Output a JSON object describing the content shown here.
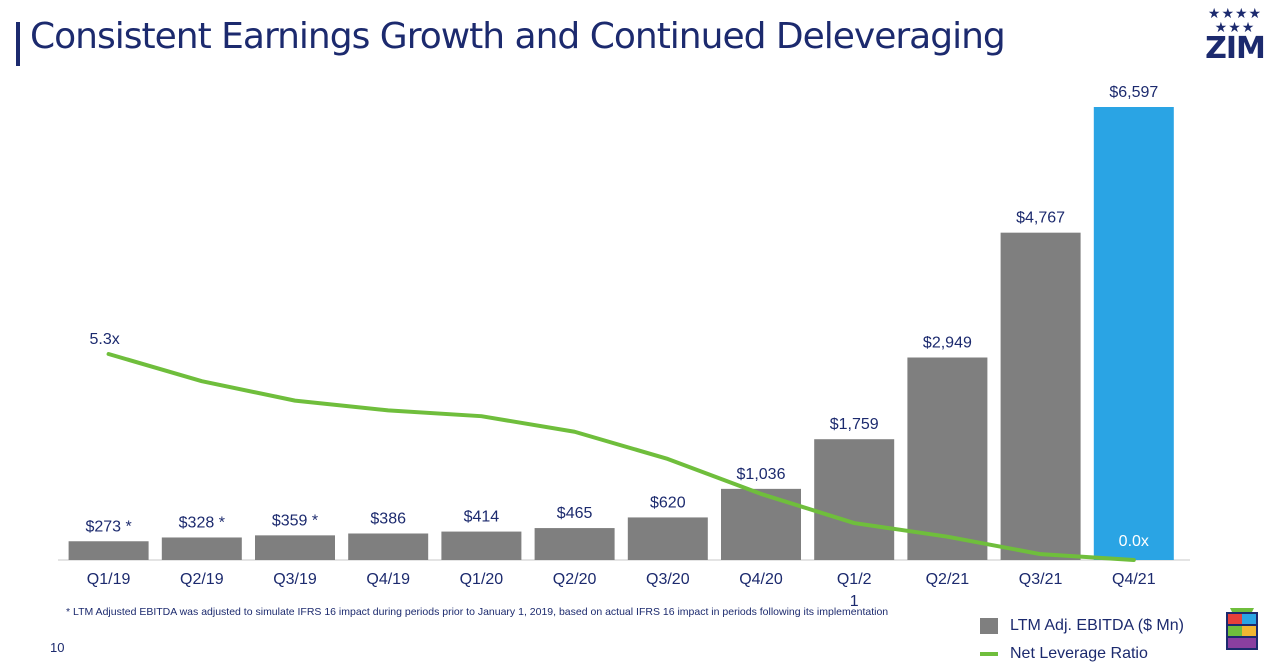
{
  "header": {
    "title": "Consistent Earnings Growth and Continued Deleveraging",
    "logo_text": "ZIM",
    "logo_stars": "★★★★\n★★★"
  },
  "colors": {
    "brand_navy": "#1c2a6e",
    "bar_gray": "#7f7f7f",
    "bar_highlight": "#2aa4e4",
    "line_green": "#6fbe3c"
  },
  "chart_data": {
    "type": "bar",
    "categories": [
      "Q1/19",
      "Q2/19",
      "Q3/19",
      "Q4/19",
      "Q1/20",
      "Q2/20",
      "Q3/20",
      "Q4/20",
      "Q1/2\n1",
      "Q2/21",
      "Q3/21",
      "Q4/21"
    ],
    "series": [
      {
        "name": "LTM Adj. EBITDA ($ Mn)",
        "type": "bar",
        "values": [
          273,
          328,
          359,
          386,
          414,
          465,
          620,
          1036,
          1759,
          2949,
          4767,
          6597
        ],
        "labels": [
          "$273 *",
          "$328 *",
          "$359 *",
          "$386",
          "$414",
          "$465",
          "$620",
          "$1,036",
          "$1,759",
          "$2,949",
          "$4,767",
          "$6,597"
        ]
      },
      {
        "name": "Net Leverage Ratio",
        "type": "line",
        "values": [
          5.3,
          4.6,
          4.1,
          3.85,
          3.7,
          3.3,
          2.6,
          1.7,
          0.95,
          0.6,
          0.15,
          0.0
        ],
        "labels": [
          "5.3x",
          "",
          "",
          "",
          "",
          "",
          "",
          "",
          "",
          "",
          "",
          "0.0x"
        ]
      }
    ],
    "highlight_index": 11,
    "ylim_bar": [
      0,
      7000
    ],
    "ylim_line": [
      0,
      10.5
    ],
    "grid": false,
    "legend_position": "bottom-right"
  },
  "footnote": "* LTM Adjusted EBITDA was adjusted to simulate IFRS 16 impact during periods prior to January 1, 2019, based on actual IFRS 16 impact in periods following its implementation",
  "page_number": "10",
  "legend": {
    "bar_label": "LTM Adj. EBITDA ($ Mn)",
    "line_label": "Net Leverage Ratio"
  }
}
